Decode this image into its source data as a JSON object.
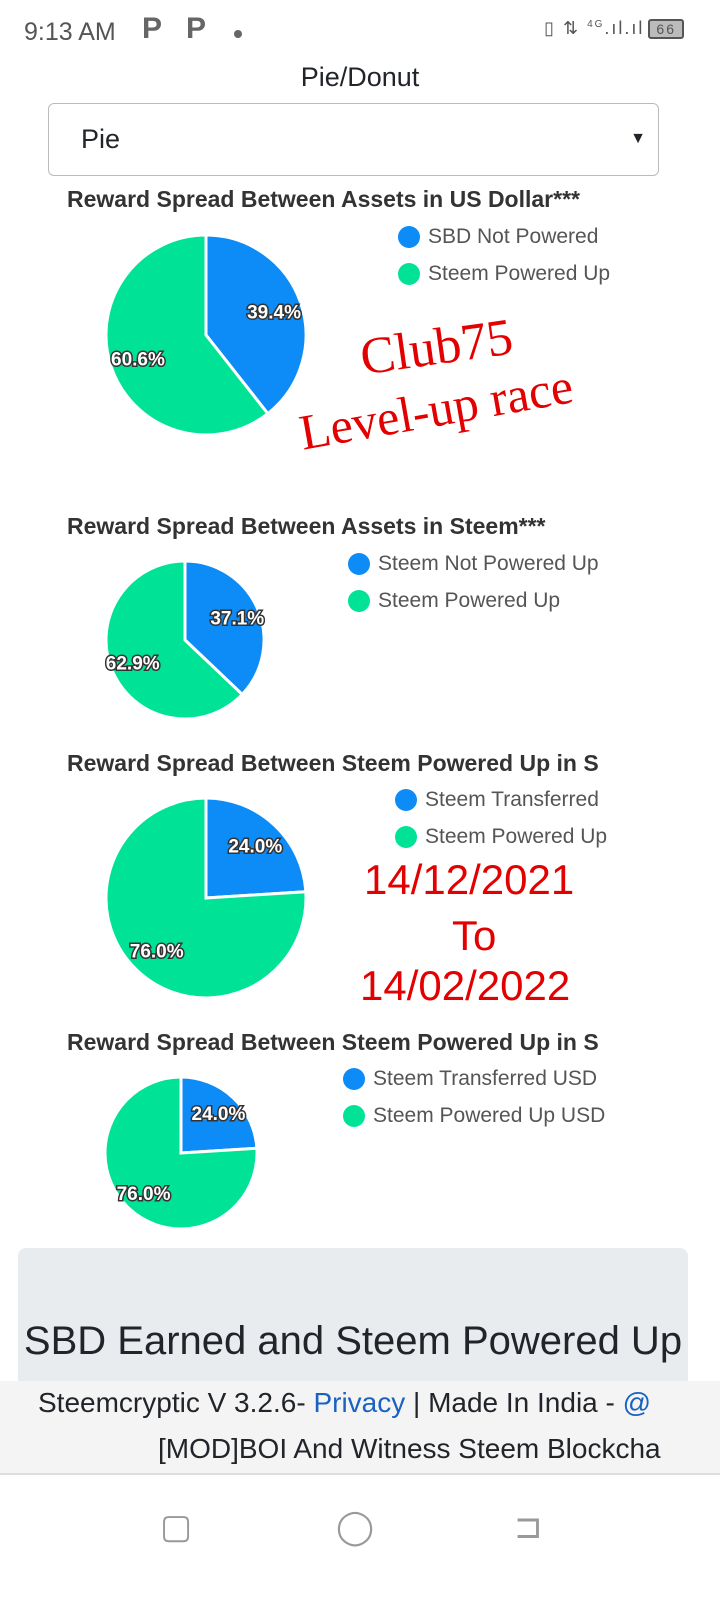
{
  "status": {
    "time": "9:13 AM",
    "notif": [
      "P",
      "P"
    ],
    "network": "4G",
    "battery": "66"
  },
  "selector": {
    "label": "Pie/Donut",
    "value": "Pie"
  },
  "colors": {
    "blue": "#0d8bf7",
    "green": "#00e396",
    "annotation": "#e30000"
  },
  "chart_data": [
    {
      "type": "pie",
      "title": "Reward Spread Between Assets in US Dollar***",
      "categories": [
        "SBD Not Powered",
        "Steem Powered Up"
      ],
      "values": [
        39.4,
        60.6
      ],
      "labels": [
        "39.4%",
        "60.6%"
      ]
    },
    {
      "type": "pie",
      "title": "Reward Spread Between Assets in Steem***",
      "categories": [
        "Steem Not Powered Up",
        "Steem Powered Up"
      ],
      "values": [
        37.1,
        62.9
      ],
      "labels": [
        "37.1%",
        "62.9%"
      ]
    },
    {
      "type": "pie",
      "title": "Reward Spread Between Steem Powered Up in S",
      "categories": [
        "Steem Transferred",
        "Steem Powered Up"
      ],
      "values": [
        24.0,
        76.0
      ],
      "labels": [
        "24.0%",
        "76.0%"
      ]
    },
    {
      "type": "pie",
      "title": "Reward Spread Between Steem Powered Up in S",
      "categories": [
        "Steem Transferred USD",
        "Steem Powered Up USD"
      ],
      "values": [
        24.0,
        76.0
      ],
      "labels": [
        "24.0%",
        "76.0%"
      ]
    }
  ],
  "annotations": {
    "club": "Club75",
    "race": "Level-up race",
    "from": "14/12/2021",
    "to": "To",
    "until": "14/02/2022"
  },
  "card": {
    "title": "SBD Earned and Steem Powered Up"
  },
  "footer": {
    "prefix": "Steemcryptic V 3.2.6- ",
    "privacy": "Privacy",
    "mid": " | Made In India - ",
    "at": "@",
    "line2": "[MOD]BOI And Witness Steem Blockcha"
  },
  "nav": {
    "recent": "recent-apps-icon",
    "home": "home-icon",
    "back": "back-icon"
  }
}
